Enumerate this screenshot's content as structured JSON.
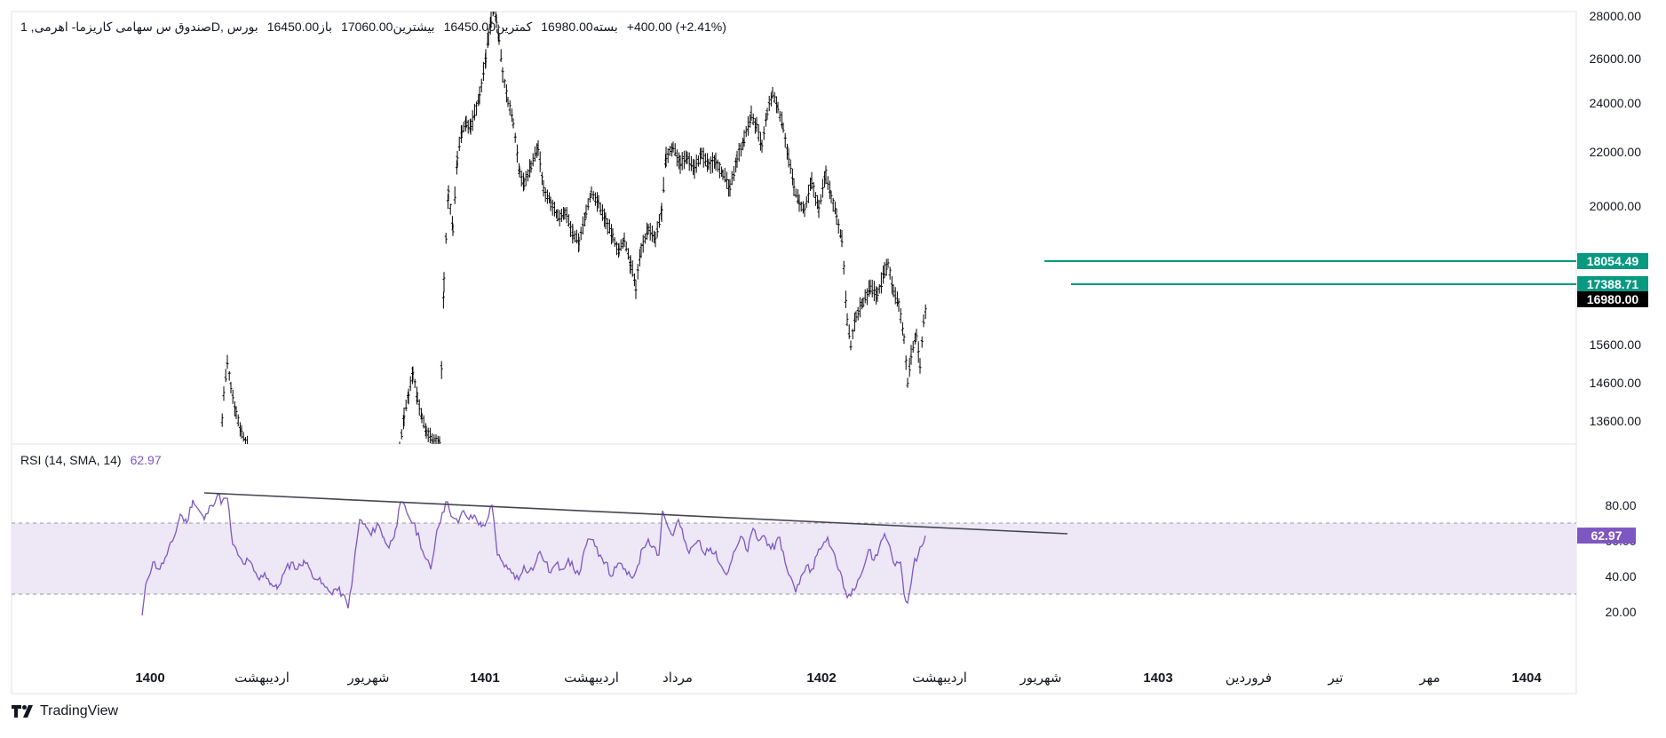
{
  "legend": {
    "symbol": "صندوق س سهامی کاریزما- اهرمی, 1D, بورس",
    "open_label": "باز",
    "open": "16450.00",
    "high_label": "بیشترین",
    "high": "17060.00",
    "low_label": "کمترین",
    "low": "16450.00",
    "close_label": "بسته",
    "close": "16980.00",
    "change": "+400.00 (+2.41%)"
  },
  "rsi_legend": {
    "label": "RSI (14, SMA, 14)",
    "value": "62.97"
  },
  "branding": {
    "name": "TradingView"
  },
  "colors": {
    "candle": "#000000",
    "level_line": "#089981",
    "price_badge": "#000000",
    "rsi_line": "#7e57c2",
    "rsi_band": "#ede7f6",
    "trendline": "#434651"
  },
  "chart_data": [
    {
      "type": "candlestick",
      "title": "صندوق س سهامی کاریزما- اهرمی, 1D, بورس",
      "price_axis_ticks": [
        "28000.00",
        "26000.00",
        "24000.00",
        "22000.00",
        "20000.00",
        "15600.00",
        "14600.00",
        "13600.00"
      ],
      "price_axis_values": [
        28000,
        26000,
        24000,
        22000,
        20000,
        15600,
        14600,
        13600
      ],
      "time_axis_labels": [
        {
          "label": "1400",
          "year": true
        },
        {
          "label": "اردیبهشت",
          "year": false
        },
        {
          "label": "شهریور",
          "year": false
        },
        {
          "label": "1401",
          "year": true
        },
        {
          "label": "اردیبهشت",
          "year": false
        },
        {
          "label": "مرداد",
          "year": false
        },
        {
          "label": "1402",
          "year": true
        },
        {
          "label": "اردیبهشت",
          "year": false
        },
        {
          "label": "شهریور",
          "year": false
        },
        {
          "label": "1403",
          "year": true
        },
        {
          "label": "فروردین",
          "year": false
        },
        {
          "label": "تیر",
          "year": false
        },
        {
          "label": "مهر",
          "year": false
        },
        {
          "label": "1404",
          "year": true
        }
      ],
      "horizontal_levels": [
        {
          "price": 18054.49,
          "label": "18054.49"
        },
        {
          "price": 17388.71,
          "label": "17388.71"
        }
      ],
      "last_price": {
        "price": 16980.0,
        "label": "16980.00"
      },
      "price_path": [
        [
          248,
          12800
        ],
        [
          252,
          14300
        ],
        [
          256,
          15100
        ],
        [
          260,
          14500
        ],
        [
          266,
          13800
        ],
        [
          272,
          13300
        ],
        [
          280,
          12900
        ],
        [
          450,
          12900
        ],
        [
          455,
          13700
        ],
        [
          460,
          14300
        ],
        [
          465,
          14900
        ],
        [
          470,
          14200
        ],
        [
          475,
          13700
        ],
        [
          480,
          13300
        ],
        [
          495,
          13000
        ],
        [
          500,
          17500
        ],
        [
          505,
          20500
        ],
        [
          510,
          19200
        ],
        [
          515,
          21800
        ],
        [
          520,
          22800
        ],
        [
          525,
          23200
        ],
        [
          530,
          23000
        ],
        [
          540,
          24300
        ],
        [
          547,
          26000
        ],
        [
          550,
          27100
        ],
        [
          553,
          27800
        ],
        [
          556,
          28500
        ],
        [
          559,
          27800
        ],
        [
          562,
          27000
        ],
        [
          566,
          25300
        ],
        [
          572,
          24100
        ],
        [
          578,
          23200
        ],
        [
          585,
          21300
        ],
        [
          590,
          20800
        ],
        [
          598,
          21500
        ],
        [
          606,
          22200
        ],
        [
          612,
          20600
        ],
        [
          620,
          20200
        ],
        [
          628,
          19600
        ],
        [
          636,
          19800
        ],
        [
          645,
          19000
        ],
        [
          652,
          18700
        ],
        [
          660,
          19800
        ],
        [
          666,
          20500
        ],
        [
          674,
          20100
        ],
        [
          682,
          19500
        ],
        [
          690,
          18900
        ],
        [
          697,
          18400
        ],
        [
          703,
          18800
        ],
        [
          710,
          18000
        ],
        [
          716,
          17300
        ],
        [
          722,
          18500
        ],
        [
          730,
          19200
        ],
        [
          738,
          18800
        ],
        [
          745,
          19800
        ],
        [
          750,
          21800
        ],
        [
          758,
          22200
        ],
        [
          766,
          21600
        ],
        [
          774,
          21800
        ],
        [
          782,
          21400
        ],
        [
          790,
          21900
        ],
        [
          798,
          21500
        ],
        [
          806,
          21700
        ],
        [
          814,
          21200
        ],
        [
          822,
          20600
        ],
        [
          830,
          21800
        ],
        [
          838,
          22500
        ],
        [
          846,
          23500
        ],
        [
          852,
          23000
        ],
        [
          858,
          22200
        ],
        [
          864,
          23600
        ],
        [
          870,
          24400
        ],
        [
          876,
          23800
        ],
        [
          882,
          23000
        ],
        [
          888,
          21800
        ],
        [
          894,
          20700
        ],
        [
          900,
          20100
        ],
        [
          906,
          19800
        ],
        [
          914,
          20900
        ],
        [
          922,
          19900
        ],
        [
          930,
          21200
        ],
        [
          936,
          20400
        ],
        [
          942,
          19700
        ],
        [
          948,
          18800
        ],
        [
          954,
          16300
        ],
        [
          958,
          15600
        ],
        [
          964,
          16500
        ],
        [
          972,
          16900
        ],
        [
          980,
          17300
        ],
        [
          988,
          17100
        ],
        [
          996,
          17700
        ],
        [
          1000,
          18000
        ],
        [
          1006,
          17200
        ],
        [
          1012,
          16800
        ],
        [
          1018,
          15800
        ],
        [
          1022,
          14600
        ],
        [
          1026,
          15300
        ],
        [
          1032,
          15900
        ],
        [
          1036,
          15000
        ],
        [
          1040,
          16300
        ],
        [
          1044,
          16980
        ]
      ]
    },
    {
      "type": "line",
      "title": "RSI (14, SMA, 14)",
      "value_axis_ticks": [
        "80.00",
        "60.00",
        "40.00",
        "20.00"
      ],
      "value_axis_values": [
        80,
        60,
        40,
        20
      ],
      "band": [
        30,
        70
      ],
      "last_value": {
        "value": 62.97,
        "label": "62.97"
      },
      "trendline": [
        [
          230,
          87
        ],
        [
          1202,
          64
        ]
      ],
      "series": [
        [
          160,
          18
        ],
        [
          165,
          37
        ],
        [
          172,
          48
        ],
        [
          180,
          44
        ],
        [
          188,
          52
        ],
        [
          196,
          62
        ],
        [
          203,
          75
        ],
        [
          210,
          70
        ],
        [
          217,
          83
        ],
        [
          223,
          78
        ],
        [
          230,
          72
        ],
        [
          238,
          80
        ],
        [
          245,
          86
        ],
        [
          250,
          82
        ],
        [
          256,
          84
        ],
        [
          262,
          58
        ],
        [
          268,
          52
        ],
        [
          274,
          47
        ],
        [
          280,
          49
        ],
        [
          286,
          43
        ],
        [
          292,
          38
        ],
        [
          298,
          42
        ],
        [
          305,
          36
        ],
        [
          312,
          33
        ],
        [
          320,
          42
        ],
        [
          328,
          48
        ],
        [
          335,
          44
        ],
        [
          342,
          49
        ],
        [
          350,
          43
        ],
        [
          358,
          38
        ],
        [
          366,
          34
        ],
        [
          372,
          31
        ],
        [
          378,
          33
        ],
        [
          386,
          30
        ],
        [
          392,
          22
        ],
        [
          398,
          44
        ],
        [
          405,
          72
        ],
        [
          412,
          68
        ],
        [
          418,
          63
        ],
        [
          425,
          70
        ],
        [
          432,
          62
        ],
        [
          438,
          56
        ],
        [
          445,
          66
        ],
        [
          452,
          82
        ],
        [
          458,
          76
        ],
        [
          465,
          70
        ],
        [
          472,
          62
        ],
        [
          478,
          51
        ],
        [
          485,
          44
        ],
        [
          492,
          66
        ],
        [
          498,
          76
        ],
        [
          504,
          82
        ],
        [
          510,
          73
        ],
        [
          516,
          70
        ],
        [
          522,
          77
        ],
        [
          528,
          72
        ],
        [
          535,
          74
        ],
        [
          542,
          68
        ],
        [
          548,
          71
        ],
        [
          554,
          80
        ],
        [
          560,
          52
        ],
        [
          566,
          48
        ],
        [
          572,
          44
        ],
        [
          578,
          42
        ],
        [
          584,
          38
        ],
        [
          590,
          46
        ],
        [
          596,
          43
        ],
        [
          602,
          46
        ],
        [
          608,
          54
        ],
        [
          614,
          48
        ],
        [
          620,
          42
        ],
        [
          626,
          47
        ],
        [
          632,
          44
        ],
        [
          640,
          50
        ],
        [
          646,
          44
        ],
        [
          652,
          41
        ],
        [
          658,
          55
        ],
        [
          664,
          61
        ],
        [
          670,
          57
        ],
        [
          676,
          52
        ],
        [
          682,
          48
        ],
        [
          688,
          40
        ],
        [
          694,
          45
        ],
        [
          700,
          47
        ],
        [
          706,
          41
        ],
        [
          712,
          39
        ],
        [
          718,
          46
        ],
        [
          724,
          56
        ],
        [
          730,
          61
        ],
        [
          736,
          57
        ],
        [
          742,
          52
        ],
        [
          746,
          77
        ],
        [
          752,
          68
        ],
        [
          758,
          63
        ],
        [
          764,
          72
        ],
        [
          770,
          61
        ],
        [
          776,
          53
        ],
        [
          782,
          58
        ],
        [
          788,
          60
        ],
        [
          794,
          52
        ],
        [
          800,
          56
        ],
        [
          806,
          54
        ],
        [
          812,
          46
        ],
        [
          818,
          41
        ],
        [
          824,
          49
        ],
        [
          830,
          57
        ],
        [
          836,
          62
        ],
        [
          842,
          54
        ],
        [
          848,
          67
        ],
        [
          854,
          60
        ],
        [
          860,
          63
        ],
        [
          866,
          58
        ],
        [
          872,
          55
        ],
        [
          878,
          62
        ],
        [
          884,
          48
        ],
        [
          890,
          40
        ],
        [
          896,
          31
        ],
        [
          902,
          40
        ],
        [
          908,
          46
        ],
        [
          914,
          44
        ],
        [
          920,
          52
        ],
        [
          926,
          57
        ],
        [
          932,
          62
        ],
        [
          936,
          56
        ],
        [
          942,
          47
        ],
        [
          948,
          40
        ],
        [
          954,
          28
        ],
        [
          960,
          33
        ],
        [
          966,
          38
        ],
        [
          972,
          44
        ],
        [
          978,
          55
        ],
        [
          984,
          49
        ],
        [
          990,
          56
        ],
        [
          996,
          64
        ],
        [
          1002,
          57
        ],
        [
          1008,
          46
        ],
        [
          1014,
          48
        ],
        [
          1018,
          30
        ],
        [
          1022,
          25
        ],
        [
          1026,
          36
        ],
        [
          1030,
          50
        ],
        [
          1034,
          52
        ],
        [
          1038,
          57
        ],
        [
          1042,
          62.97
        ]
      ]
    }
  ]
}
